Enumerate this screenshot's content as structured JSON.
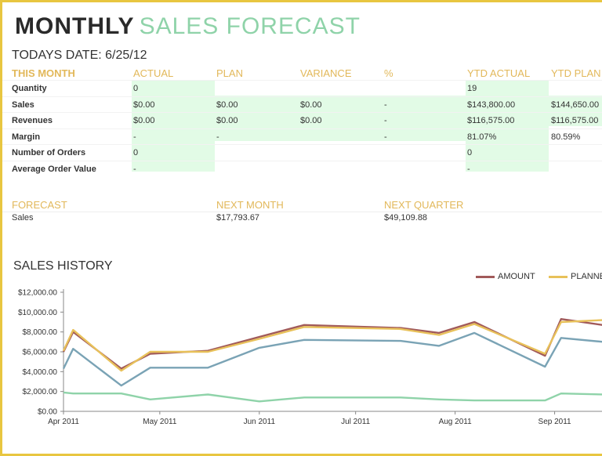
{
  "title": {
    "bold": "MONTHLY",
    "light": "SALES FORECAST"
  },
  "date_label": "TODAYS DATE: 6/25/12",
  "table": {
    "headers": [
      "THIS MONTH",
      "ACTUAL",
      "PLAN",
      "VARIANCE",
      "%",
      "YTD ACTUAL",
      "YTD PLAN"
    ],
    "rows": [
      {
        "label": "Quantity",
        "cells": [
          "0",
          "",
          "",
          "",
          "19",
          ""
        ]
      },
      {
        "label": "Sales",
        "cells": [
          "$0.00",
          "$0.00",
          "$0.00",
          "-",
          "$143,800.00",
          "$144,650.00"
        ]
      },
      {
        "label": "Revenues",
        "cells": [
          "$0.00",
          "$0.00",
          "$0.00",
          "-",
          "$116,575.00",
          "$116,575.00"
        ]
      },
      {
        "label": "Margin",
        "cells": [
          "-",
          "-",
          "",
          "-",
          "81.07%",
          "80.59%"
        ]
      },
      {
        "label": "Number of Orders",
        "cells": [
          "0",
          "",
          "",
          "",
          "0",
          ""
        ]
      },
      {
        "label": "Average Order Value",
        "cells": [
          "-",
          "",
          "",
          "",
          "-",
          ""
        ]
      }
    ]
  },
  "forecast": {
    "headers": [
      "FORECAST",
      "NEXT MONTH",
      "NEXT QUARTER"
    ],
    "row": {
      "label": "Sales",
      "next_month": "$17,793.67",
      "next_quarter": "$49,109.88"
    }
  },
  "sales_history": {
    "title": "SALES HISTORY",
    "legend": [
      {
        "name": "AMOUNT",
        "color": "#a15a5a"
      },
      {
        "name": "PLANNE",
        "color": "#e8c15a"
      }
    ]
  },
  "chart_data": {
    "type": "line",
    "y_ticks": [
      "$12,000.00",
      "$10,000.00",
      "$8,000.00",
      "$6,000.00",
      "$4,000.00",
      "$2,000.00",
      "$0.00"
    ],
    "ylim": [
      0,
      12000
    ],
    "x_ticks": [
      "Apr 2011",
      "May 2011",
      "Jun 2011",
      "Jul 2011",
      "Aug 2011",
      "Sep 2011"
    ],
    "x_tick_pos": [
      0.0,
      30,
      61,
      91,
      122,
      153
    ],
    "xlim": [
      0,
      168
    ],
    "series": [
      {
        "name": "AMOUNT",
        "color": "#a15a5a",
        "x": [
          0,
          3,
          18,
          27,
          45,
          61,
          75,
          105,
          117,
          128,
          150,
          155,
          168
        ],
        "y": [
          6000,
          8000,
          4300,
          5800,
          6100,
          7500,
          8700,
          8400,
          7900,
          9000,
          5600,
          9300,
          8700
        ]
      },
      {
        "name": "PLANNE",
        "color": "#e8c15a",
        "x": [
          0,
          3,
          18,
          27,
          45,
          61,
          75,
          105,
          117,
          128,
          150,
          155,
          168
        ],
        "y": [
          6100,
          8200,
          4100,
          6000,
          6000,
          7300,
          8500,
          8300,
          7700,
          8800,
          5800,
          9000,
          9200
        ]
      },
      {
        "name": "",
        "color": "#7aa3b5",
        "x": [
          0,
          3,
          18,
          27,
          45,
          61,
          75,
          105,
          117,
          128,
          150,
          155,
          168
        ],
        "y": [
          4300,
          6300,
          2600,
          4400,
          4400,
          6400,
          7200,
          7100,
          6600,
          7900,
          4500,
          7400,
          7000
        ]
      },
      {
        "name": "",
        "color": "#8fd3a9",
        "x": [
          0,
          3,
          18,
          27,
          45,
          61,
          75,
          105,
          117,
          128,
          150,
          155,
          168
        ],
        "y": [
          1900,
          1800,
          1800,
          1200,
          1700,
          1000,
          1400,
          1400,
          1200,
          1100,
          1100,
          1800,
          1700
        ]
      }
    ]
  }
}
